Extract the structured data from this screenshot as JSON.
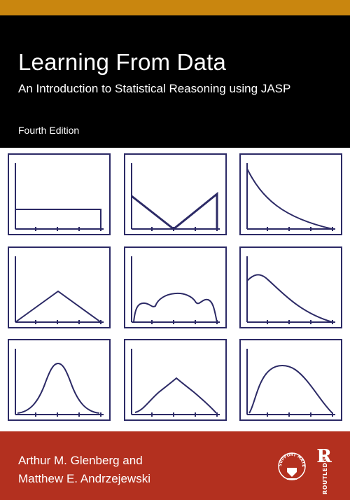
{
  "cover": {
    "title": "Learning From Data",
    "subtitle": "An Introduction to Statistical Reasoning using JASP",
    "edition": "Fourth Edition",
    "authors": [
      "Arthur M. Glenberg and",
      "Matthew E. Andrzejewski"
    ],
    "badge_text": "SUPPORT MATERIAL",
    "publisher": "ROUTLEDGE",
    "publisher_mark": "R"
  },
  "colors": {
    "top_stripe": "#c9860f",
    "header_bg": "#000000",
    "footer_bg": "#b3301f",
    "plot_line": "#2c2a66"
  },
  "distribution_panels": [
    {
      "shape": "uniform"
    },
    {
      "shape": "v-shaped"
    },
    {
      "shape": "exponential-decay"
    },
    {
      "shape": "triangular"
    },
    {
      "shape": "multimodal-plateau"
    },
    {
      "shape": "right-skewed"
    },
    {
      "shape": "normal"
    },
    {
      "shape": "peaked"
    },
    {
      "shape": "skewed-bell"
    }
  ]
}
